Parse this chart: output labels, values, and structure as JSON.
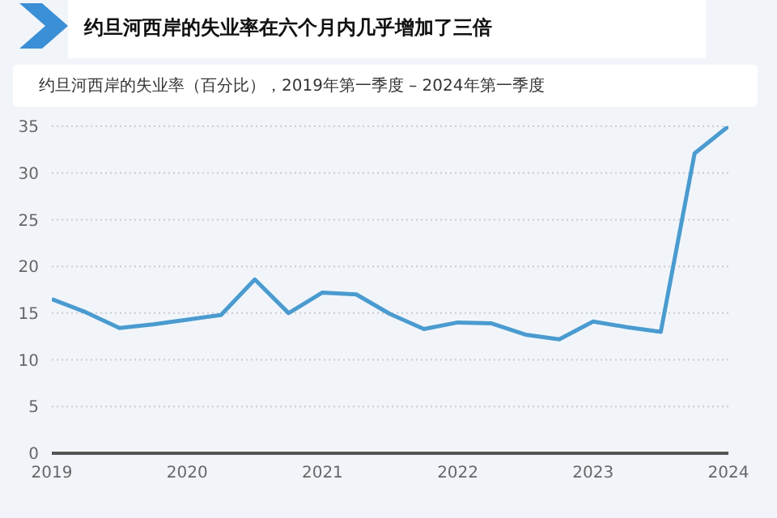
{
  "chart_data": {
    "type": "line",
    "title": "约旦河西岸的失业率在六个月内几乎增加了三倍",
    "subtitle": "约旦河西岸的失业率（百分比），2019年第一季度 – 2024年第一季度",
    "x": [
      2019,
      2019.25,
      2019.5,
      2019.75,
      2020,
      2020.25,
      2020.5,
      2020.75,
      2021,
      2021.25,
      2021.5,
      2021.75,
      2022,
      2022.25,
      2022.5,
      2022.75,
      2023,
      2023.25,
      2023.5,
      2023.75,
      2024
    ],
    "series": [
      {
        "color": "#4a9bcf",
        "values": [
          16.5,
          15.1,
          13.4,
          13.8,
          14.3,
          14.8,
          18.6,
          15.0,
          17.2,
          17.0,
          14.9,
          13.3,
          14.0,
          13.9,
          12.7,
          12.2,
          14.1,
          13.5,
          13.0,
          32.1,
          35.0
        ]
      }
    ],
    "xlim": [
      2019,
      2024
    ],
    "xticks": [
      2019,
      2020,
      2021,
      2022,
      2023,
      2024
    ],
    "ylim": [
      0,
      35
    ],
    "yticks": [
      0,
      5,
      10,
      15,
      20,
      25,
      30,
      35
    ],
    "grid": "y",
    "marker": "none",
    "line_style": "solid"
  }
}
